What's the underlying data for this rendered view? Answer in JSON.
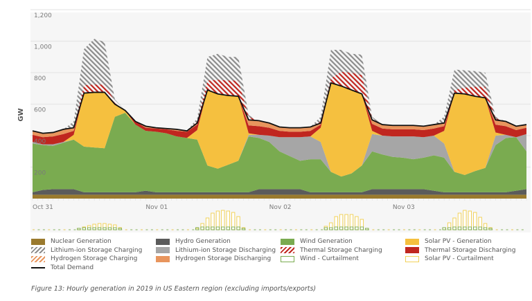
{
  "chart_data": {
    "type": "area",
    "stacked": true,
    "ylabel": "GW",
    "ylim": [
      0,
      1200
    ],
    "yticks": [
      "200",
      "400",
      "600",
      "800",
      "1,000",
      "1,200"
    ],
    "ytick_values": [
      200,
      400,
      600,
      800,
      1000,
      1200
    ],
    "grid": true,
    "x_unit": "hour",
    "xlim": [
      2,
      98
    ],
    "xticks": [
      {
        "label": "Oct 31",
        "hour": 2
      },
      {
        "label": "Nov 01",
        "hour": 24
      },
      {
        "label": "Nov 02",
        "hour": 48
      },
      {
        "label": "Nov 03",
        "hour": 72
      }
    ],
    "hours": [
      2,
      4,
      6,
      8,
      10,
      12,
      14,
      16,
      18,
      20,
      22,
      24,
      26,
      28,
      30,
      32,
      34,
      36,
      38,
      40,
      42,
      44,
      46,
      48,
      50,
      52,
      54,
      56,
      58,
      60,
      62,
      64,
      66,
      68,
      70,
      72,
      74,
      76,
      78,
      80,
      82,
      84,
      86,
      88,
      90,
      92,
      94,
      96,
      98
    ],
    "series": [
      {
        "key": "nuclear",
        "name": "Nuclear Generation",
        "color": "#9a7a2e",
        "values": [
          25,
          25,
          25,
          25,
          25,
          25,
          25,
          25,
          25,
          25,
          25,
          25,
          25,
          25,
          25,
          25,
          25,
          25,
          25,
          25,
          25,
          25,
          25,
          25,
          25,
          25,
          25,
          25,
          25,
          25,
          25,
          25,
          25,
          25,
          25,
          25,
          25,
          25,
          25,
          25,
          25,
          25,
          25,
          25,
          25,
          25,
          25,
          25,
          25
        ]
      },
      {
        "key": "hydro",
        "name": "Hydro Generation",
        "color": "#5b5b5b",
        "values": [
          15,
          30,
          35,
          35,
          35,
          15,
          15,
          15,
          15,
          15,
          15,
          25,
          15,
          15,
          15,
          15,
          15,
          15,
          15,
          15,
          15,
          15,
          35,
          35,
          35,
          35,
          35,
          15,
          15,
          15,
          15,
          15,
          15,
          35,
          35,
          35,
          35,
          35,
          35,
          25,
          15,
          15,
          15,
          15,
          15,
          15,
          15,
          25,
          35
        ]
      },
      {
        "key": "wind",
        "name": "Wind Generation",
        "color": "#7aab50",
        "values": [
          310,
          285,
          275,
          295,
          315,
          290,
          285,
          280,
          480,
          505,
          430,
          380,
          385,
          375,
          355,
          345,
          335,
          170,
          150,
          175,
          200,
          355,
          325,
          300,
          240,
          210,
          180,
          210,
          210,
          130,
          100,
          120,
          170,
          240,
          220,
          205,
          200,
          190,
          200,
          225,
          220,
          130,
          110,
          135,
          155,
          300,
          345,
          340,
          240
        ]
      },
      {
        "key": "li_discharge",
        "name": "Lithium-ion Storage Discharging",
        "color": "#a6a6a6",
        "values": [
          10,
          5,
          10,
          5,
          0,
          0,
          0,
          0,
          0,
          0,
          0,
          0,
          0,
          0,
          0,
          0,
          0,
          0,
          0,
          0,
          0,
          10,
          20,
          40,
          90,
          120,
          150,
          145,
          110,
          0,
          0,
          0,
          0,
          110,
          120,
          130,
          135,
          145,
          130,
          125,
          90,
          0,
          0,
          0,
          0,
          60,
          20,
          0,
          110
        ]
      },
      {
        "key": "solar",
        "name": "Solar PV - Generation",
        "color": "#f5c03f",
        "values": [
          0,
          0,
          0,
          0,
          30,
          340,
          350,
          355,
          80,
          15,
          0,
          0,
          0,
          0,
          0,
          0,
          60,
          480,
          475,
          440,
          410,
          10,
          0,
          0,
          0,
          0,
          0,
          0,
          90,
          565,
          575,
          530,
          455,
          20,
          0,
          0,
          0,
          0,
          0,
          0,
          80,
          500,
          515,
          475,
          445,
          20,
          0,
          0,
          0
        ]
      },
      {
        "key": "thermal_discharge",
        "name": "Thermal Storage Discharging",
        "color": "#c0261f",
        "values": [
          45,
          45,
          50,
          50,
          25,
          0,
          0,
          0,
          0,
          0,
          20,
          20,
          20,
          25,
          35,
          40,
          35,
          0,
          0,
          0,
          0,
          50,
          55,
          50,
          40,
          35,
          35,
          35,
          20,
          0,
          0,
          0,
          0,
          45,
          45,
          45,
          45,
          45,
          45,
          45,
          30,
          0,
          0,
          0,
          0,
          50,
          55,
          45,
          40
        ]
      },
      {
        "key": "h2_discharge",
        "name": "Hydrogen Storage Discharging",
        "color": "#e8955d",
        "values": [
          25,
          25,
          25,
          30,
          20,
          0,
          0,
          0,
          0,
          0,
          0,
          10,
          5,
          5,
          10,
          5,
          10,
          0,
          0,
          0,
          0,
          35,
          35,
          30,
          25,
          25,
          25,
          25,
          10,
          0,
          0,
          0,
          0,
          25,
          25,
          25,
          25,
          25,
          25,
          25,
          20,
          0,
          0,
          0,
          0,
          30,
          30,
          25,
          20
        ]
      }
    ],
    "charging_series": [
      {
        "key": "thermal_charging",
        "name": "Thermal Storage Charging",
        "color": "#c0261f",
        "pattern": "hatch",
        "values": [
          0,
          0,
          0,
          0,
          0,
          50,
          50,
          50,
          20,
          0,
          0,
          0,
          0,
          0,
          0,
          0,
          10,
          60,
          90,
          95,
          100,
          20,
          0,
          0,
          0,
          0,
          0,
          0,
          10,
          30,
          90,
          110,
          120,
          10,
          0,
          0,
          0,
          0,
          0,
          0,
          0,
          20,
          40,
          60,
          70,
          10,
          0,
          0,
          0
        ]
      },
      {
        "key": "li_charging",
        "name": "Lithium-ion Storage Charging",
        "color": "#8c8c8c",
        "pattern": "hatch",
        "values": [
          0,
          0,
          0,
          0,
          40,
          230,
          290,
          270,
          10,
          0,
          0,
          0,
          0,
          0,
          0,
          0,
          20,
          150,
          165,
          150,
          150,
          10,
          0,
          0,
          0,
          0,
          0,
          0,
          30,
          180,
          140,
          120,
          130,
          10,
          0,
          0,
          0,
          0,
          0,
          0,
          40,
          130,
          110,
          100,
          90,
          10,
          0,
          0,
          0
        ]
      }
    ],
    "total_demand": {
      "name": "Total Demand",
      "color": "#111111",
      "values": [
        430,
        415,
        420,
        440,
        450,
        670,
        675,
        675,
        600,
        560,
        490,
        460,
        450,
        445,
        440,
        430,
        480,
        690,
        665,
        655,
        650,
        500,
        495,
        480,
        455,
        450,
        450,
        455,
        480,
        735,
        715,
        690,
        665,
        500,
        470,
        465,
        465,
        465,
        460,
        470,
        480,
        670,
        665,
        650,
        640,
        500,
        490,
        460,
        470
      ]
    },
    "curtailment": {
      "solar_name": "Solar PV - Curtailment",
      "solar_color": "#f2d25a",
      "wind_name": "Wind - Curtailment",
      "wind_color": "#7aab50",
      "solar": [
        {
          "start_hour": 11,
          "values": [
            2,
            4,
            6,
            8,
            9,
            9,
            8,
            7,
            3
          ]
        },
        {
          "start_hour": 34,
          "values": [
            2,
            9,
            17,
            24,
            27,
            28,
            27,
            25,
            19,
            3
          ]
        },
        {
          "start_hour": 59,
          "values": [
            5,
            10,
            19,
            22,
            22,
            22,
            19,
            15,
            2
          ]
        },
        {
          "start_hour": 82,
          "values": [
            3,
            10,
            17,
            24,
            28,
            27,
            25,
            18,
            9,
            3
          ]
        }
      ],
      "wind": [
        {
          "start_hour": 11,
          "values": [
            2,
            3,
            3,
            3,
            3,
            3,
            3,
            3,
            2
          ]
        },
        {
          "start_hour": 34,
          "values": [
            3,
            4,
            4,
            4,
            4,
            4,
            4,
            4,
            4,
            2
          ]
        },
        {
          "start_hour": 59,
          "values": [
            3,
            3,
            4,
            4,
            4,
            4,
            4,
            4,
            2
          ]
        },
        {
          "start_hour": 82,
          "values": [
            3,
            3,
            4,
            4,
            4,
            4,
            4,
            4,
            3,
            2
          ]
        }
      ]
    }
  },
  "legend": [
    {
      "label": "Nuclear Generation",
      "type": "fill",
      "color": "#9a7a2e"
    },
    {
      "label": "Hydro Generation",
      "type": "fill",
      "color": "#5b5b5b"
    },
    {
      "label": "Wind Generation",
      "type": "fill",
      "color": "#7aab50"
    },
    {
      "label": "Solar PV - Generation",
      "type": "fill",
      "color": "#f5c03f"
    },
    {
      "label": "Lithium-ion Storage Charging",
      "type": "hatch",
      "color": "#8c8c8c"
    },
    {
      "label": "Lithium-ion Storage Discharging",
      "type": "fill",
      "color": "#a6a6a6"
    },
    {
      "label": "Thermal Storage Charging",
      "type": "hatch",
      "color": "#c0261f"
    },
    {
      "label": "Thermal Storage Discharging",
      "type": "fill",
      "color": "#c0261f"
    },
    {
      "label": "Hydrogen Storage Charging",
      "type": "hatch",
      "color": "#e8955d"
    },
    {
      "label": "Hydrogen Storage Discharging",
      "type": "fill",
      "color": "#e8955d"
    },
    {
      "label": "Wind - Curtailment",
      "type": "outline",
      "color": "#7aab50"
    },
    {
      "label": "Solar PV - Curtailment",
      "type": "outline",
      "color": "#f2d25a"
    },
    {
      "label": "Total Demand",
      "type": "line",
      "color": "#111111"
    }
  ],
  "caption": "Figure 13: Hourly generation in 2019 in US Eastern region (excluding imports/exports)"
}
